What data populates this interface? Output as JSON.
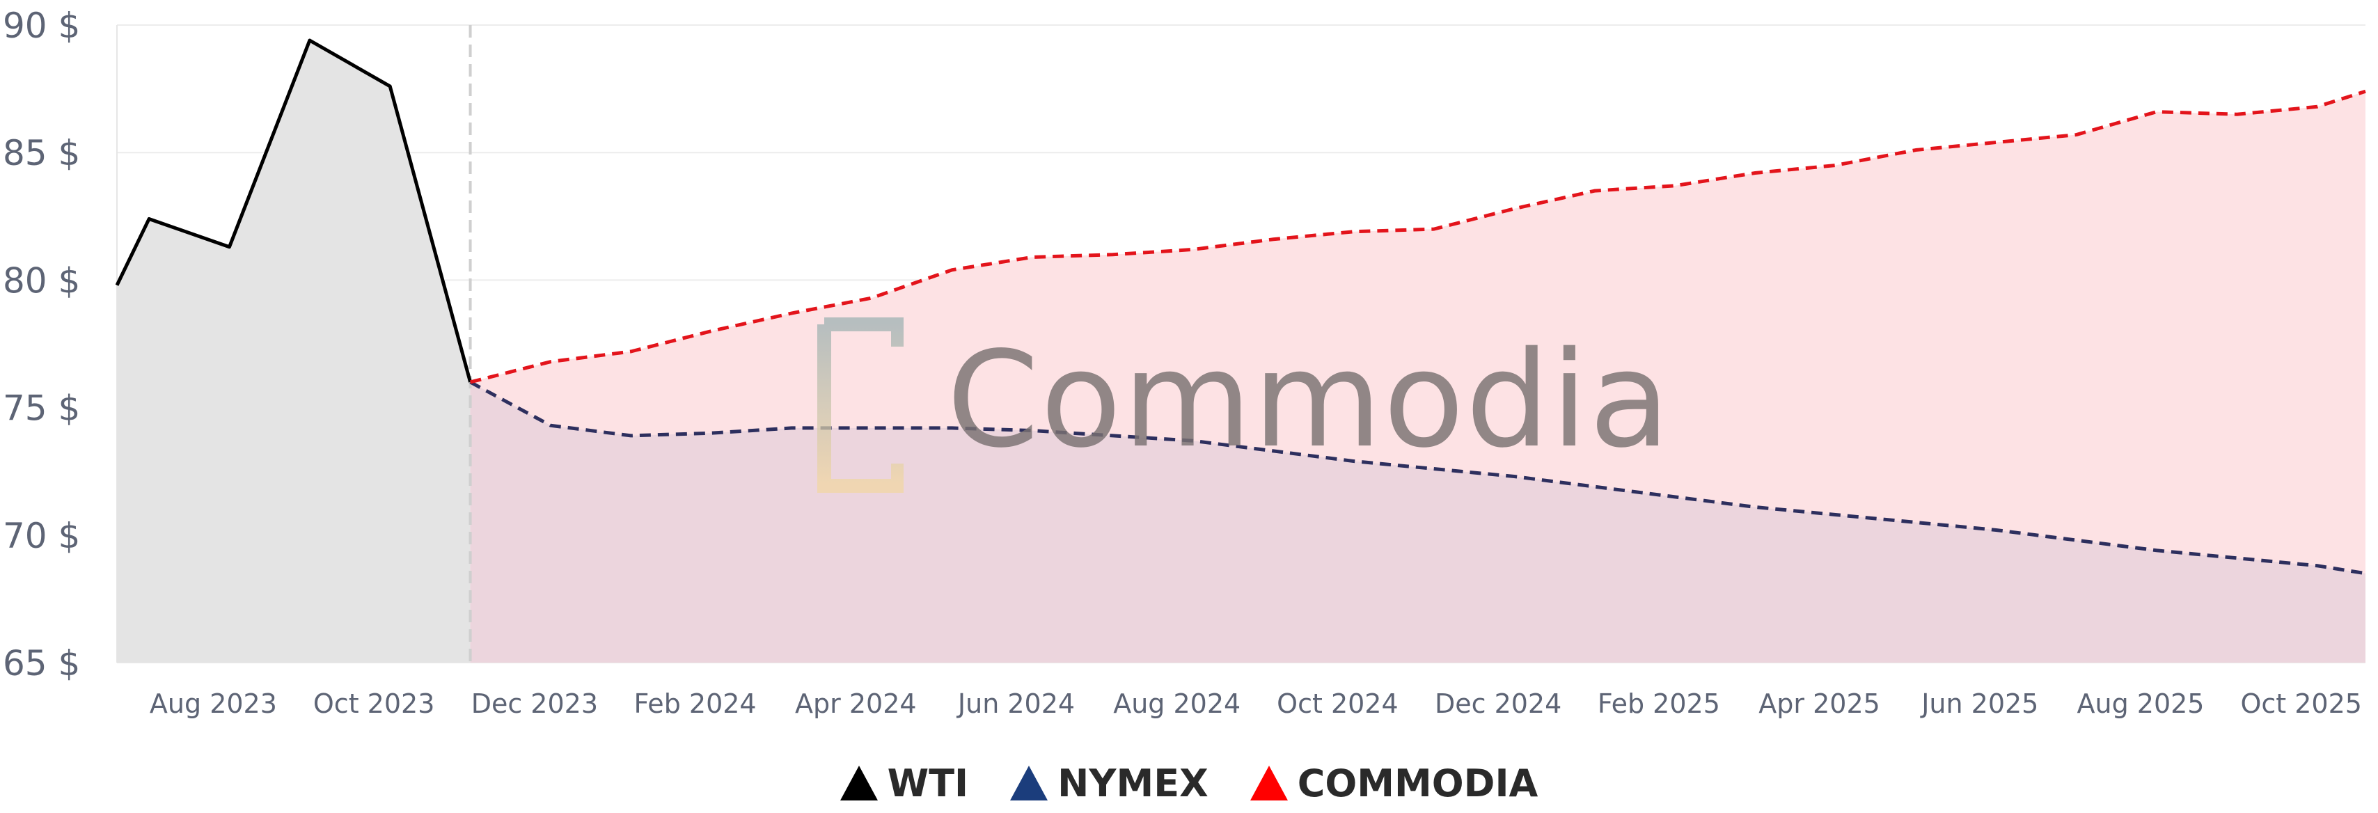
{
  "chart_data": {
    "type": "line",
    "ylim": [
      65,
      90
    ],
    "y_ticks": [
      "65 $",
      "70 $",
      "75 $",
      "80 $",
      "85 $",
      "90 $"
    ],
    "y_tick_values": [
      65,
      70,
      75,
      80,
      85,
      90
    ],
    "x_ticks": [
      "Aug 2023",
      "Oct 2023",
      "Dec 2023",
      "Feb 2024",
      "Apr 2024",
      "Jun 2024",
      "Aug 2024",
      "Oct 2024",
      "Dec 2024",
      "Feb 2025",
      "Apr 2025",
      "Jun 2025",
      "Aug 2025",
      "Oct 2025"
    ],
    "x_tick_months": [
      1,
      3,
      5,
      7,
      9,
      11,
      13,
      15,
      17,
      19,
      21,
      23,
      25,
      27
    ],
    "xlim_months": [
      -0.2,
      27.8
    ],
    "divider_month": 4.2,
    "grid": "horizontal",
    "legend_placement": "bottom-center",
    "series": [
      {
        "name": "WTI",
        "color": "#000000",
        "style": "solid",
        "fill": "#e4e4e4",
        "x_months": [
          -0.2,
          0.2,
          1.2,
          2.2,
          3.2,
          4.2
        ],
        "values": [
          79.8,
          82.4,
          81.3,
          89.4,
          87.6,
          76.0
        ]
      },
      {
        "name": "NYMEX",
        "color": "#2d2f5e",
        "style": "dashed",
        "x_months": [
          4.2,
          5.2,
          6.2,
          7.2,
          8.2,
          9.2,
          10.2,
          11.2,
          12.2,
          13.2,
          14.2,
          15.2,
          16.2,
          17.2,
          18.2,
          19.2,
          20.2,
          21.2,
          22.2,
          23.2,
          24.2,
          25.2,
          26.2,
          27.2,
          27.8
        ],
        "values": [
          76.0,
          74.3,
          73.9,
          74.0,
          74.2,
          74.2,
          74.2,
          74.1,
          73.9,
          73.7,
          73.3,
          72.9,
          72.6,
          72.3,
          71.9,
          71.5,
          71.1,
          70.8,
          70.5,
          70.2,
          69.8,
          69.4,
          69.1,
          68.8,
          68.5
        ]
      },
      {
        "name": "COMMODIA",
        "color": "#e3141b",
        "style": "dashed",
        "fill": "#fde2e4",
        "x_months": [
          4.2,
          5.2,
          6.2,
          7.2,
          8.2,
          9.2,
          10.2,
          11.2,
          12.2,
          13.2,
          14.2,
          15.2,
          16.2,
          17.2,
          18.2,
          19.2,
          20.2,
          21.2,
          22.2,
          23.2,
          24.2,
          25.2,
          26.2,
          27.2,
          27.8
        ],
        "values": [
          76.0,
          76.8,
          77.2,
          78.0,
          78.7,
          79.3,
          80.4,
          80.9,
          81.0,
          81.2,
          81.6,
          81.9,
          82.0,
          82.8,
          83.5,
          83.7,
          84.2,
          84.5,
          85.1,
          85.4,
          85.7,
          86.6,
          86.5,
          86.8,
          87.4
        ]
      }
    ]
  },
  "legend": [
    {
      "label": "WTI",
      "color": "#000000"
    },
    {
      "label": "NYMEX",
      "color": "#1b3d7c"
    },
    {
      "label": "COMMODIA",
      "color": "#ff0000"
    }
  ],
  "watermark": {
    "text": "Commodia",
    "icon": "bracket-logo-icon"
  }
}
